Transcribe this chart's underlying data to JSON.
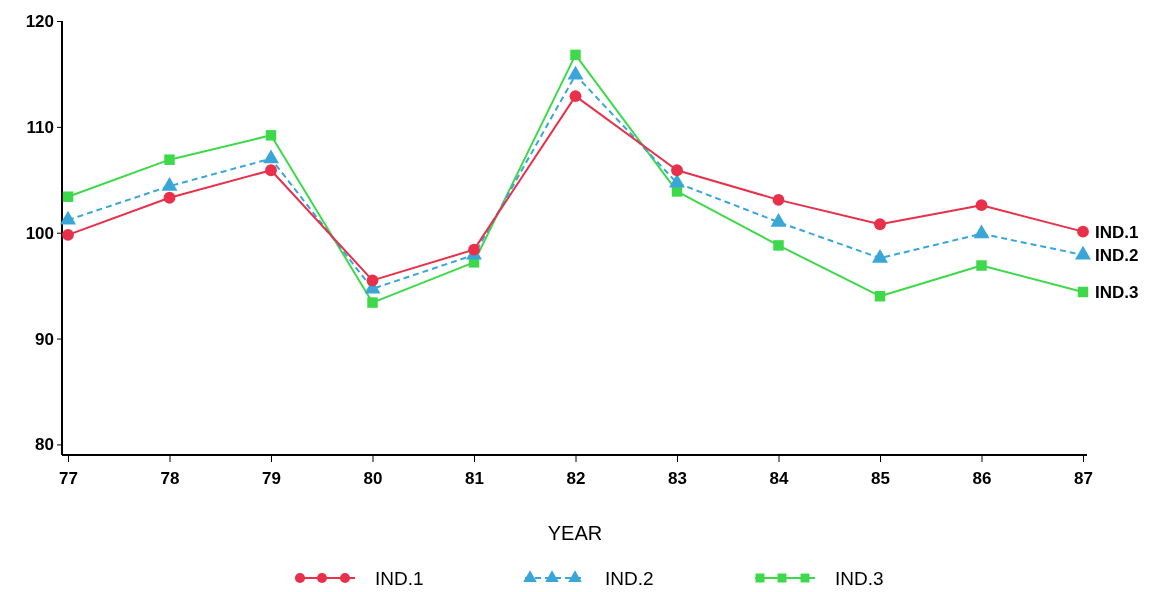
{
  "chart_data": {
    "type": "line",
    "xlabel": "YEAR",
    "categories": [
      "77",
      "78",
      "79",
      "80",
      "81",
      "82",
      "83",
      "84",
      "85",
      "86",
      "87"
    ],
    "series": [
      {
        "name": "IND.1",
        "color": "#e8304a",
        "marker": "circle",
        "line_style": "solid",
        "values": [
          99.8,
          103.3,
          105.9,
          95.5,
          98.4,
          112.9,
          105.9,
          103.1,
          100.8,
          102.6,
          100.1
        ]
      },
      {
        "name": "IND.2",
        "color": "#3aa6d8",
        "marker": "triangle",
        "line_style": "dashed",
        "values": [
          101.2,
          104.4,
          107.0,
          94.7,
          97.9,
          114.9,
          104.7,
          101.0,
          97.6,
          99.9,
          97.9
        ]
      },
      {
        "name": "IND.3",
        "color": "#3ed94a",
        "marker": "square",
        "line_style": "solid",
        "values": [
          103.4,
          106.9,
          109.2,
          93.4,
          97.2,
          116.8,
          103.9,
          98.8,
          94.0,
          96.9,
          94.4
        ]
      }
    ],
    "ylim": [
      79,
      120
    ],
    "yticks": [
      80,
      90,
      100,
      110,
      120
    ],
    "grid": false,
    "legend": "bottom"
  }
}
